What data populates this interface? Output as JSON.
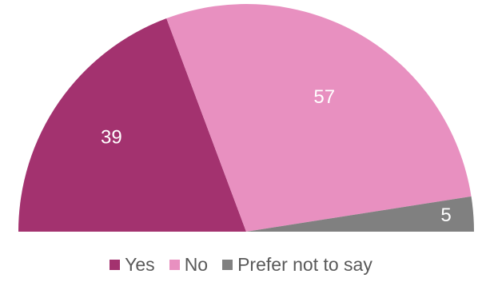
{
  "chart_data": {
    "type": "pie",
    "variant": "half-donut",
    "title": "",
    "categories": [
      "Yes",
      "No",
      "Prefer not to say"
    ],
    "values": [
      39,
      57,
      5
    ],
    "data_labels": [
      "39",
      "57",
      "5"
    ],
    "colors": [
      "#a3326f",
      "#e890c0",
      "#808080"
    ],
    "legend": {
      "placement": "bottom",
      "entries": [
        "Yes",
        "No",
        "Prefer not to say"
      ]
    }
  }
}
